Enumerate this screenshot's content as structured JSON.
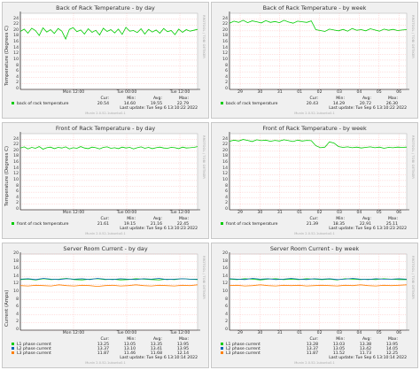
{
  "panels": [
    {
      "title": "Back of Rack Temperature - by day",
      "ylabel": "Temperature (Degrees C)",
      "rlabel": "RRDTOOL / TOBI OETIKER",
      "yticks": [
        "24",
        "22",
        "20",
        "18",
        "16",
        "14",
        "12",
        "10",
        "8",
        "6",
        "4",
        "2",
        "0"
      ],
      "xticks": [
        "Mon 12:00",
        "Tue 00:00",
        "Tue 12:00"
      ],
      "stat_headers": [
        "Cur:",
        "Min:",
        "Avg:",
        "Max:"
      ],
      "legend": [
        {
          "name": "back of rack temperature",
          "color": "#00cc00",
          "stats": [
            "20.54",
            "14.60",
            "19.55",
            "22.79"
          ]
        }
      ],
      "last_update": "Last update: Tue Sep  6 13:10:22 2022",
      "munin": "Munin 2.0.52-1ubuntu0.1"
    },
    {
      "title": "Back of Rack Temperature - by week",
      "ylabel": "",
      "rlabel": "RRDTOOL / TOBI OETIKER",
      "yticks": [
        "24",
        "22",
        "20",
        "18",
        "16",
        "14",
        "12",
        "10",
        "8",
        "6",
        "4",
        "2",
        "0"
      ],
      "xticks": [
        "29",
        "30",
        "31",
        "01",
        "02",
        "03",
        "04",
        "05",
        "06"
      ],
      "stat_headers": [
        "Cur:",
        "Min:",
        "Avg:",
        "Max:"
      ],
      "legend": [
        {
          "name": "back of rack temperature",
          "color": "#00cc00",
          "stats": [
            "20.43",
            "14.29",
            "20.72",
            "26.30"
          ]
        }
      ],
      "last_update": "Last update: Tue Sep  6 13:10:22 2022",
      "munin": "Munin 2.0.52-1ubuntu0.1"
    },
    {
      "title": "Front of Rack Temperature - by day",
      "ylabel": "Temperature (Degrees C)",
      "rlabel": "RRDTOOL / TOBI OETIKER",
      "yticks": [
        "24",
        "22",
        "20",
        "18",
        "16",
        "14",
        "12",
        "10",
        "8",
        "6",
        "4",
        "2",
        "0"
      ],
      "xticks": [
        "Mon 12:00",
        "Tue 00:00",
        "Tue 12:00"
      ],
      "stat_headers": [
        "Cur:",
        "Min:",
        "Avg:",
        "Max:"
      ],
      "legend": [
        {
          "name": "front of rack temperature",
          "color": "#00cc00",
          "stats": [
            "21.61",
            "19.15",
            "21.16",
            "22.45"
          ]
        }
      ],
      "last_update": "Last update: Tue Sep  6 13:10:23 2022",
      "munin": "Munin 2.0.52-1ubuntu0.1"
    },
    {
      "title": "Front of Rack Temperature - by week",
      "ylabel": "",
      "rlabel": "RRDTOOL / TOBI OETIKER",
      "yticks": [
        "24",
        "22",
        "20",
        "18",
        "16",
        "14",
        "12",
        "10",
        "8",
        "6",
        "4",
        "2",
        "0"
      ],
      "xticks": [
        "29",
        "30",
        "31",
        "01",
        "02",
        "03",
        "04",
        "05",
        "06"
      ],
      "stat_headers": [
        "Cur:",
        "Min:",
        "Avg:",
        "Max:"
      ],
      "legend": [
        {
          "name": "front of rack temperature",
          "color": "#00cc00",
          "stats": [
            "21.39",
            "18.35",
            "22.91",
            "25.11"
          ]
        }
      ],
      "last_update": "Last update: Tue Sep  6 13:10:23 2022",
      "munin": "Munin 2.0.52-1ubuntu0.1"
    },
    {
      "title": "Server Room Current - by day",
      "ylabel": "Current (Amps)",
      "rlabel": "RRDTOOL / TOBI OETIKER",
      "yticks": [
        "20",
        "18",
        "16",
        "14",
        "12",
        "10",
        "8",
        "6",
        "4",
        "2",
        "0"
      ],
      "xticks": [
        "Mon 12:00",
        "Tue 00:00",
        "Tue 12:00"
      ],
      "stat_headers": [
        "Cur:",
        "Min:",
        "Avg:",
        "Max:"
      ],
      "legend": [
        {
          "name": "L1 phase current",
          "color": "#00cc00",
          "stats": [
            "13.25",
            "13.05",
            "13.35",
            "13.95"
          ]
        },
        {
          "name": "L2 phase current",
          "color": "#0066b3",
          "stats": [
            "13.37",
            "13.10",
            "13.41",
            "13.95"
          ]
        },
        {
          "name": "L3 phase current",
          "color": "#ff8000",
          "stats": [
            "11.87",
            "11.46",
            "11.68",
            "12.14"
          ]
        }
      ],
      "last_update": "Last update: Tue Sep  6 13:10:14 2022",
      "munin": "Munin 2.0.52-1ubuntu0.1"
    },
    {
      "title": "Server Room Current - by week",
      "ylabel": "",
      "rlabel": "RRDTOOL / TOBI OETIKER",
      "yticks": [
        "20",
        "18",
        "16",
        "14",
        "12",
        "10",
        "8",
        "6",
        "4",
        "2",
        "0"
      ],
      "xticks": [
        "29",
        "30",
        "31",
        "01",
        "02",
        "03",
        "04",
        "05",
        "06"
      ],
      "stat_headers": [
        "Cur:",
        "Min:",
        "Avg:",
        "Max:"
      ],
      "legend": [
        {
          "name": "L1 phase current",
          "color": "#00cc00",
          "stats": [
            "13.28",
            "13.03",
            "13.38",
            "13.95"
          ]
        },
        {
          "name": "L2 phase current",
          "color": "#0066b3",
          "stats": [
            "13.37",
            "13.05",
            "13.42",
            "14.05"
          ]
        },
        {
          "name": "L3 phase current",
          "color": "#ff8000",
          "stats": [
            "11.87",
            "11.52",
            "11.73",
            "12.25"
          ]
        }
      ],
      "last_update": "Last update: Tue Sep  6 13:10:14 2022",
      "munin": "Munin 2.0.52-1ubuntu0.1"
    }
  ],
  "chart_data": [
    {
      "type": "line",
      "title": "Back of Rack Temperature - by day",
      "ylabel": "Temperature (Degrees C)",
      "ylim": [
        0,
        26
      ],
      "x_ticks": [
        "Mon 12:00",
        "Tue 00:00",
        "Tue 12:00"
      ],
      "series": [
        {
          "name": "back of rack temperature",
          "values": [
            19.8,
            20.6,
            19.2,
            20.9,
            20.1,
            18.4,
            21.0,
            19.6,
            20.4,
            19.1,
            20.8,
            19.9,
            17.2,
            20.5,
            21.1,
            19.7,
            20.3,
            18.9,
            20.7,
            19.5,
            20.2,
            18.6,
            20.9,
            19.8,
            20.4,
            19.3,
            20.6,
            18.8,
            21.2,
            19.9,
            20.1,
            19.4,
            20.7,
            18.9,
            20.5,
            19.6,
            20.3,
            19.2,
            20.8,
            19.7,
            20.1,
            18.7,
            20.6,
            19.5,
            20.4,
            19.9,
            20.2,
            20.5
          ]
        }
      ]
    },
    {
      "type": "line",
      "title": "Back of Rack Temperature - by week",
      "ylim": [
        0,
        26
      ],
      "x_ticks": [
        "29",
        "30",
        "31",
        "01",
        "02",
        "03",
        "04",
        "05",
        "06"
      ],
      "series": [
        {
          "name": "back of rack temperature",
          "values": [
            22.6,
            23.3,
            22.9,
            23.6,
            22.8,
            23.4,
            23.1,
            22.7,
            23.5,
            22.9,
            23.2,
            22.8,
            23.6,
            23.0,
            22.6,
            23.3,
            23.1,
            22.9,
            23.4,
            20.4,
            20.1,
            19.8,
            20.6,
            20.3,
            20.0,
            20.5,
            19.9,
            20.8,
            20.2,
            20.4,
            20.0,
            20.7,
            20.3,
            19.9,
            20.6,
            20.2,
            20.5,
            20.1,
            20.3,
            20.4
          ]
        }
      ]
    },
    {
      "type": "line",
      "title": "Front of Rack Temperature - by day",
      "ylabel": "Temperature (Degrees C)",
      "ylim": [
        0,
        26
      ],
      "x_ticks": [
        "Mon 12:00",
        "Tue 00:00",
        "Tue 12:00"
      ],
      "series": [
        {
          "name": "front of rack temperature",
          "values": [
            21.1,
            21.5,
            20.8,
            21.3,
            21.0,
            21.6,
            20.7,
            21.2,
            21.4,
            20.9,
            21.3,
            21.1,
            21.5,
            20.8,
            21.2,
            21.0,
            21.6,
            21.1,
            20.9,
            21.4,
            21.2,
            20.8,
            21.3,
            21.5,
            21.0,
            21.2,
            20.9,
            21.4,
            21.1,
            21.3,
            20.8,
            21.2,
            21.5,
            21.0,
            21.3,
            20.9,
            21.2,
            21.4,
            21.1,
            21.0,
            21.3,
            21.2,
            20.9,
            21.4,
            21.1,
            21.2,
            21.3,
            21.6
          ]
        }
      ]
    },
    {
      "type": "line",
      "title": "Front of Rack Temperature - by week",
      "ylim": [
        0,
        26
      ],
      "x_ticks": [
        "29",
        "30",
        "31",
        "01",
        "02",
        "03",
        "04",
        "05",
        "06"
      ],
      "series": [
        {
          "name": "front of rack temperature",
          "values": [
            23.4,
            23.8,
            23.5,
            24.0,
            23.7,
            23.3,
            23.9,
            23.6,
            23.8,
            23.4,
            23.7,
            23.5,
            23.9,
            23.6,
            23.3,
            23.8,
            23.5,
            23.7,
            23.6,
            21.9,
            21.2,
            21.4,
            23.2,
            22.8,
            21.6,
            21.3,
            21.5,
            21.2,
            21.4,
            21.1,
            21.3,
            21.5,
            21.2,
            21.4,
            21.0,
            21.3,
            21.2,
            21.4,
            21.3,
            21.4
          ]
        }
      ]
    },
    {
      "type": "line",
      "title": "Server Room Current - by day",
      "ylabel": "Current (Amps)",
      "ylim": [
        0,
        20
      ],
      "x_ticks": [
        "Mon 12:00",
        "Tue 00:00",
        "Tue 12:00"
      ],
      "series": [
        {
          "name": "L1 phase current",
          "values": [
            13.3,
            13.4,
            13.2,
            13.5,
            13.3,
            13.4,
            13.6,
            13.3,
            13.2,
            13.4,
            13.5,
            13.3,
            13.4,
            13.2,
            13.3,
            13.5,
            13.4,
            13.3,
            13.2,
            13.4,
            13.3,
            13.5,
            13.4,
            13.3
          ]
        },
        {
          "name": "L2 phase current",
          "values": [
            13.4,
            13.5,
            13.3,
            13.6,
            13.4,
            13.3,
            13.5,
            13.4,
            13.5,
            13.3,
            13.6,
            13.4,
            13.3,
            13.5,
            13.4,
            13.3,
            13.5,
            13.4,
            13.6,
            13.3,
            13.4,
            13.5,
            13.4,
            13.4
          ]
        },
        {
          "name": "L3 phase current",
          "values": [
            11.7,
            11.6,
            11.8,
            11.7,
            11.6,
            11.9,
            11.7,
            11.6,
            11.8,
            11.7,
            11.5,
            11.7,
            11.8,
            11.6,
            11.7,
            11.9,
            11.7,
            11.6,
            11.8,
            11.7,
            11.6,
            11.8,
            11.7,
            11.9
          ]
        }
      ]
    },
    {
      "type": "line",
      "title": "Server Room Current - by week",
      "ylim": [
        0,
        20
      ],
      "x_ticks": [
        "29",
        "30",
        "31",
        "01",
        "02",
        "03",
        "04",
        "05",
        "06"
      ],
      "series": [
        {
          "name": "L1 phase current",
          "values": [
            13.4,
            13.3,
            13.5,
            13.4,
            13.2,
            13.4,
            13.5,
            13.3,
            13.4,
            13.3,
            13.5,
            13.4,
            13.3,
            13.4,
            13.2,
            13.5,
            13.4,
            13.3,
            13.4,
            13.3,
            13.5,
            13.4,
            13.3,
            13.3
          ]
        },
        {
          "name": "L2 phase current",
          "values": [
            13.5,
            13.4,
            13.3,
            13.6,
            13.4,
            13.5,
            13.3,
            13.4,
            13.6,
            13.4,
            13.3,
            13.5,
            13.4,
            13.5,
            13.3,
            13.4,
            13.6,
            13.4,
            13.3,
            13.5,
            13.4,
            13.4,
            13.5,
            13.4
          ]
        },
        {
          "name": "L3 phase current",
          "values": [
            11.7,
            11.8,
            11.6,
            11.7,
            11.9,
            11.7,
            11.6,
            11.8,
            11.7,
            11.8,
            11.6,
            11.7,
            11.8,
            11.7,
            11.6,
            11.8,
            11.7,
            11.9,
            11.7,
            11.6,
            11.8,
            11.7,
            11.8,
            11.9
          ]
        }
      ]
    }
  ]
}
